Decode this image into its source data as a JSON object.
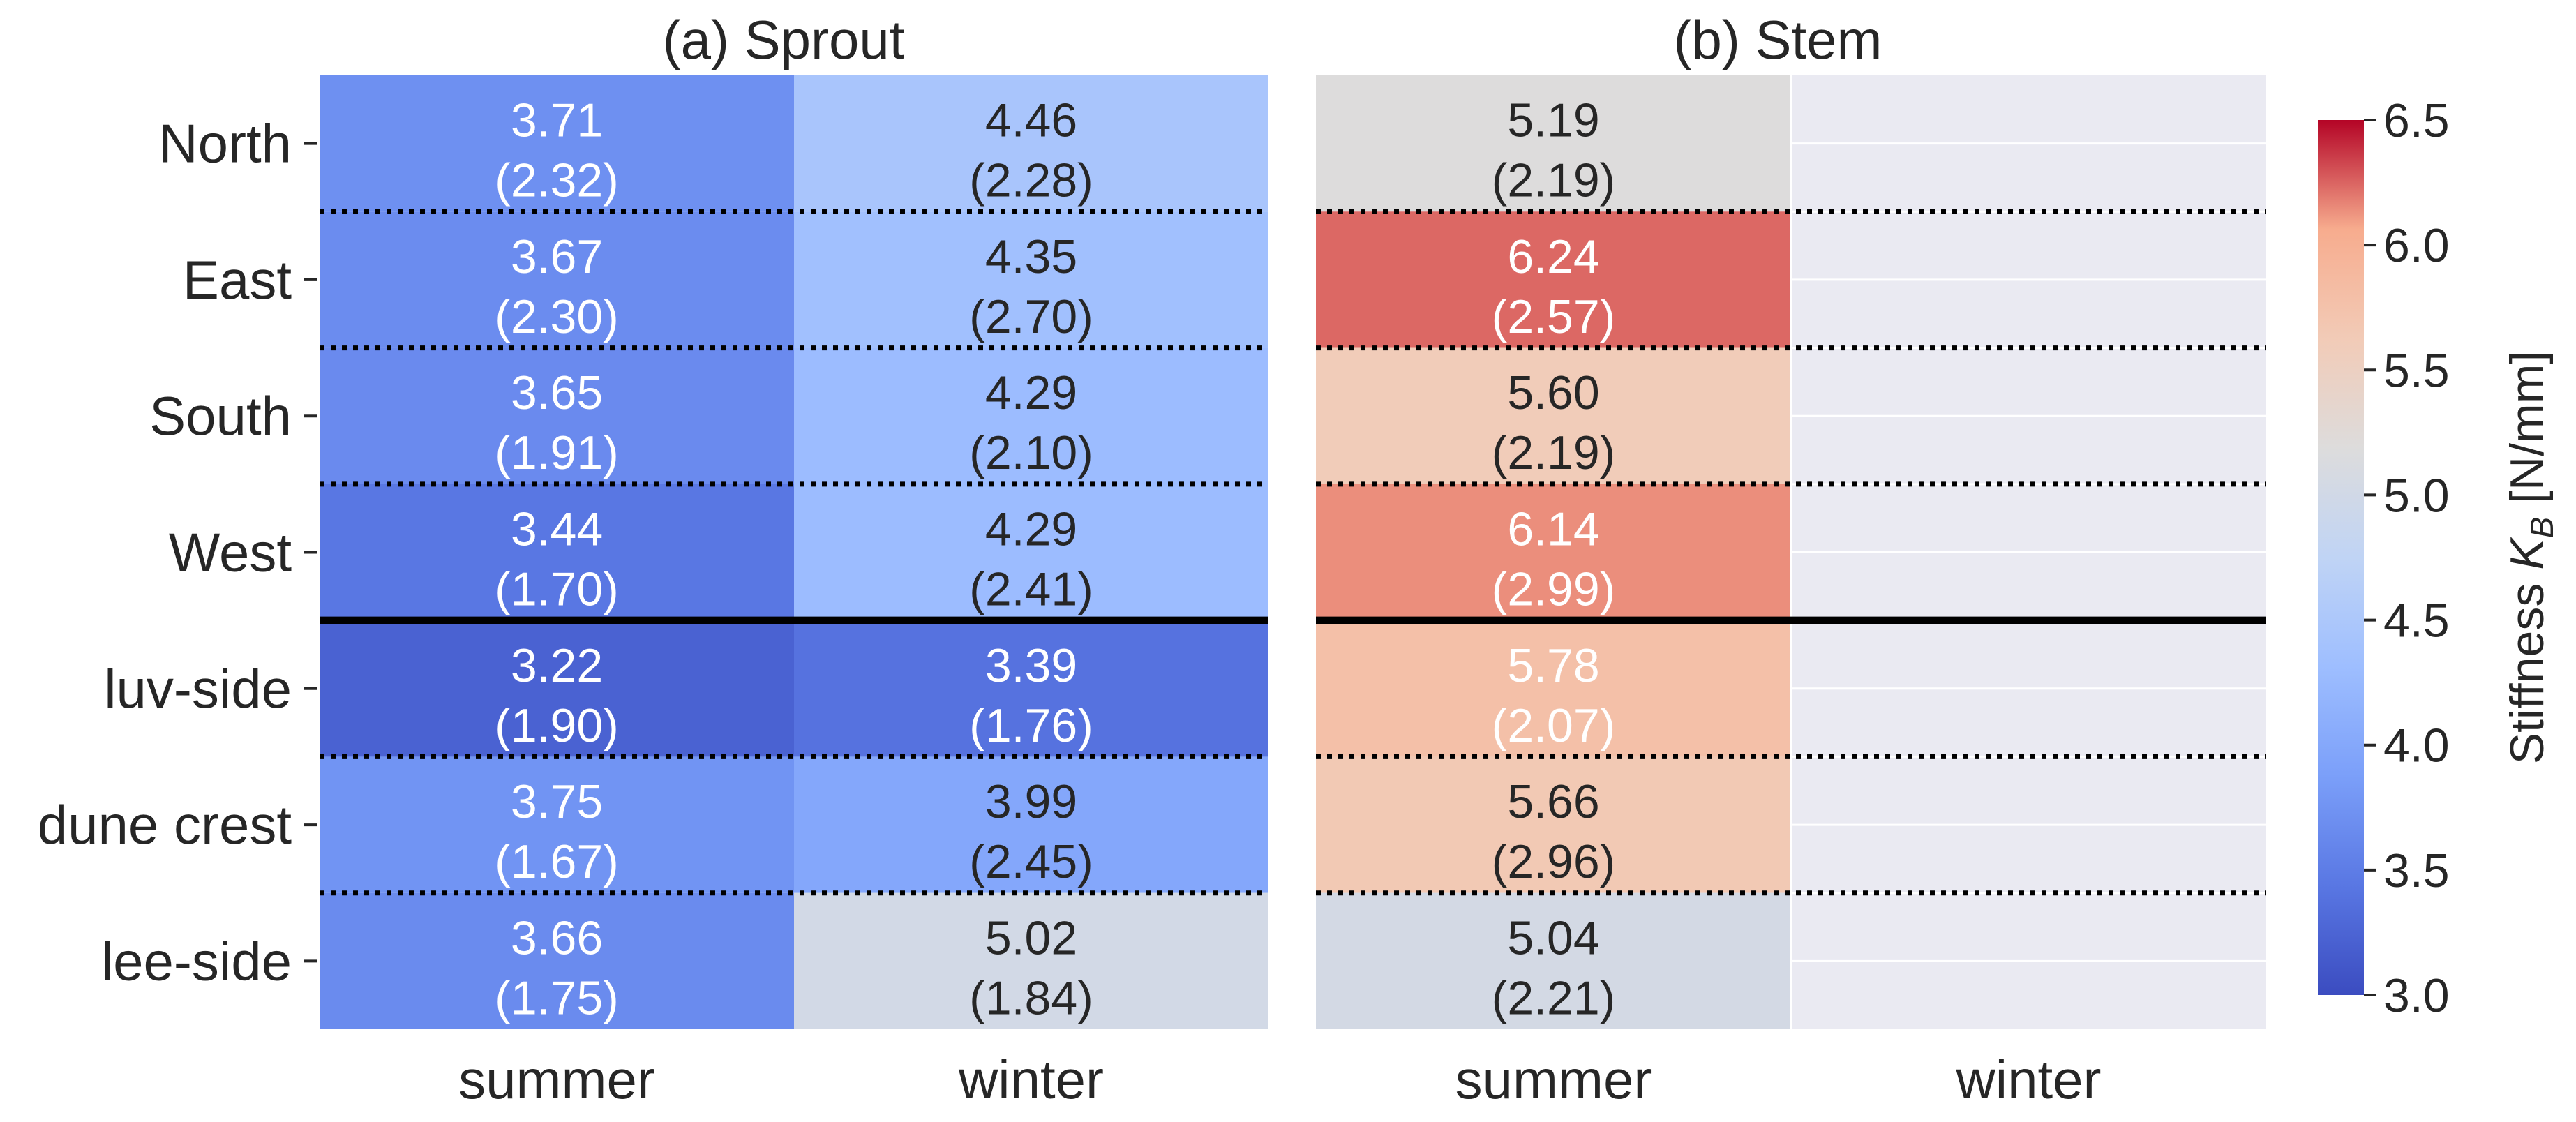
{
  "chart_data": [
    {
      "type": "heatmap",
      "title": "(a) Sprout",
      "columns": [
        "summer",
        "winter"
      ],
      "rows": [
        "North",
        "East",
        "South",
        "West",
        "luv-side",
        "dune crest",
        "lee-side"
      ],
      "cells": [
        [
          {
            "value": "3.71",
            "sd": "(2.32)"
          },
          {
            "value": "4.46",
            "sd": "(2.28)"
          }
        ],
        [
          {
            "value": "3.67",
            "sd": "(2.30)"
          },
          {
            "value": "4.35",
            "sd": "(2.70)"
          }
        ],
        [
          {
            "value": "3.65",
            "sd": "(1.91)"
          },
          {
            "value": "4.29",
            "sd": "(2.10)"
          }
        ],
        [
          {
            "value": "3.44",
            "sd": "(1.70)"
          },
          {
            "value": "4.29",
            "sd": "(2.41)"
          }
        ],
        [
          {
            "value": "3.22",
            "sd": "(1.90)"
          },
          {
            "value": "3.39",
            "sd": "(1.76)"
          }
        ],
        [
          {
            "value": "3.75",
            "sd": "(1.67)"
          },
          {
            "value": "3.99",
            "sd": "(2.45)"
          }
        ],
        [
          {
            "value": "3.66",
            "sd": "(1.75)"
          },
          {
            "value": "5.02",
            "sd": "(1.84)"
          }
        ]
      ]
    },
    {
      "type": "heatmap",
      "title": "(b) Stem",
      "columns": [
        "summer",
        "winter"
      ],
      "rows": [
        "North",
        "East",
        "South",
        "West",
        "luv-side",
        "dune crest",
        "lee-side"
      ],
      "cells": [
        [
          {
            "value": "5.19",
            "sd": "(2.19)"
          },
          null
        ],
        [
          {
            "value": "6.24",
            "sd": "(2.57)"
          },
          null
        ],
        [
          {
            "value": "5.60",
            "sd": "(2.19)"
          },
          null
        ],
        [
          {
            "value": "6.14",
            "sd": "(2.99)"
          },
          null
        ],
        [
          {
            "value": "5.78",
            "sd": "(2.07)"
          },
          null
        ],
        [
          {
            "value": "5.66",
            "sd": "(2.96)"
          },
          null
        ],
        [
          {
            "value": "5.04",
            "sd": "(2.21)"
          },
          null
        ]
      ]
    }
  ],
  "colorbar": {
    "label_prefix": "Stiffness ",
    "label_symbol": "K",
    "label_subscript": "B",
    "label_suffix": " [N/mm]",
    "range": [
      3.0,
      6.5
    ],
    "ticks": [
      "3.0",
      "3.5",
      "4.0",
      "4.5",
      "5.0",
      "5.5",
      "6.0",
      "6.5"
    ],
    "colormap": "coolwarm"
  },
  "colors": {
    "missing_cell": "#eaeaf2",
    "text_dark": "#262626",
    "text_light": "#ffffff",
    "row_separator": "#000000"
  }
}
